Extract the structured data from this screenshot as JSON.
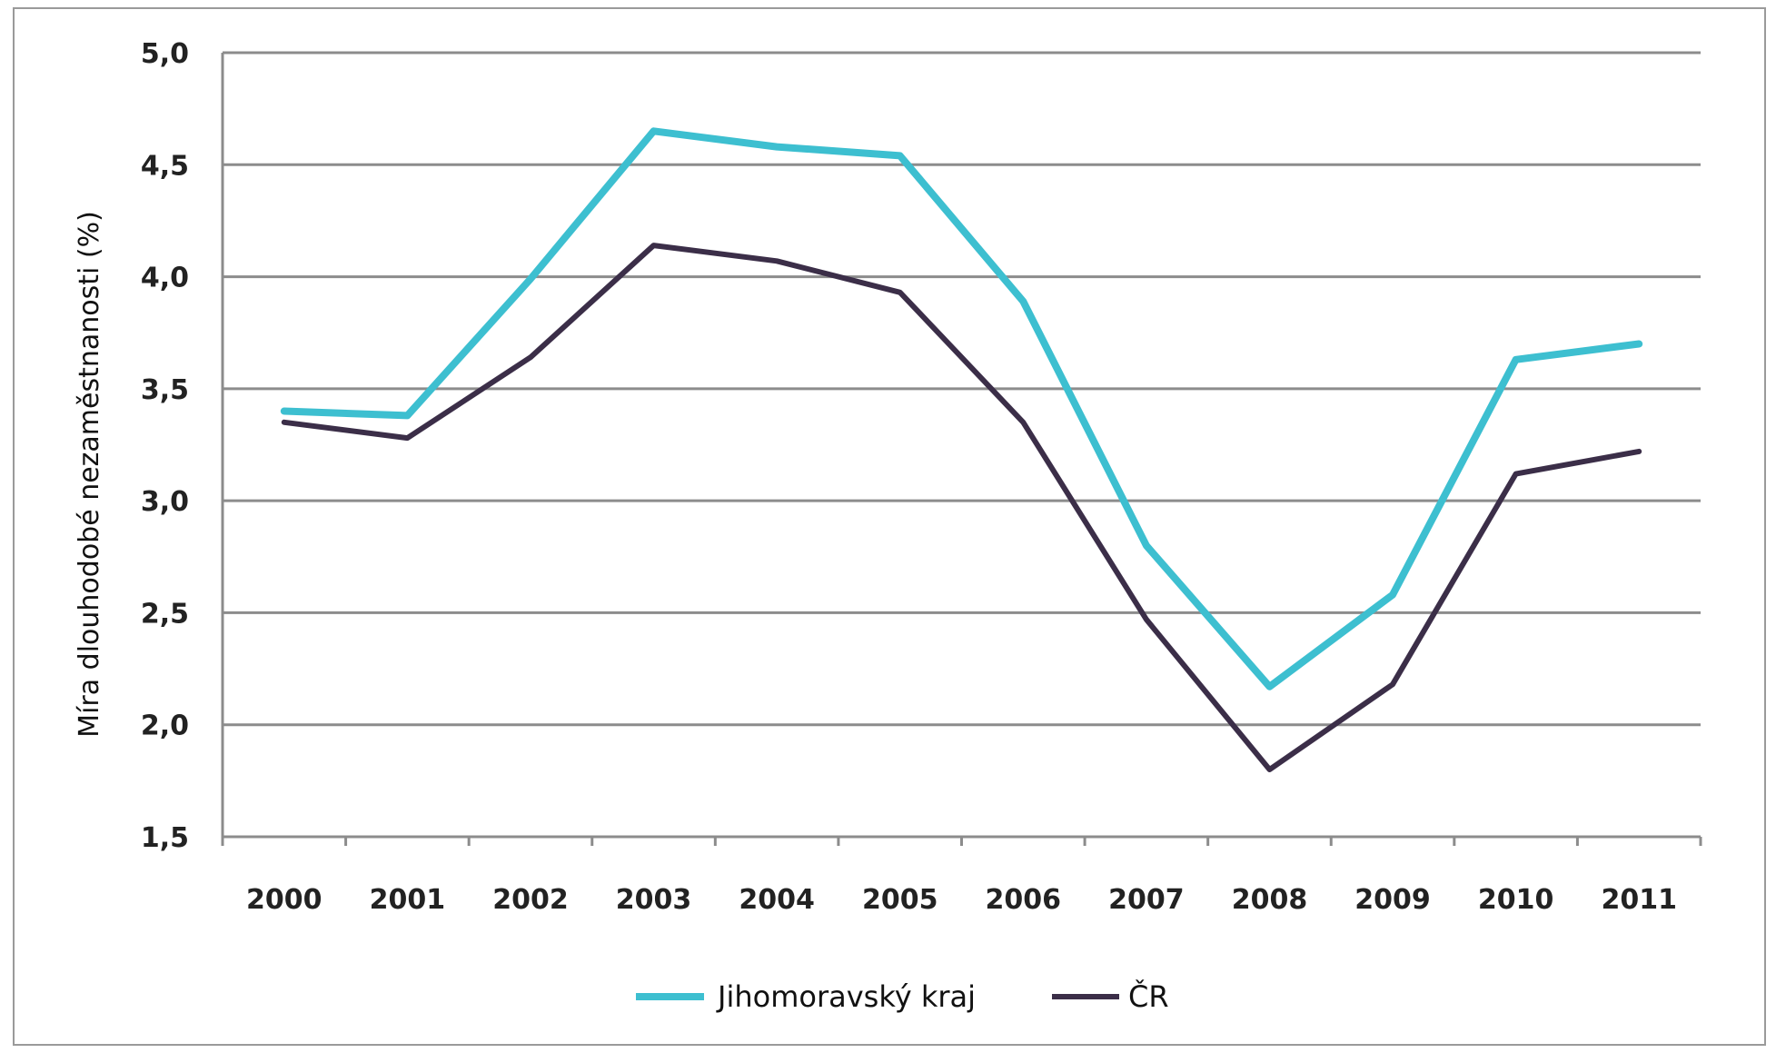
{
  "chart_data": {
    "type": "line",
    "ylabel": "Míra dlouhodobé nezaměstnanosti (%)",
    "ylim": [
      1.5,
      5.0
    ],
    "yticks": [
      "1,5",
      "2,0",
      "2,5",
      "3,0",
      "3,5",
      "4,0",
      "4,5",
      "5,0"
    ],
    "categories": [
      "2000",
      "2001",
      "2002",
      "2003",
      "2004",
      "2005",
      "2006",
      "2007",
      "2008",
      "2009",
      "2010",
      "2011"
    ],
    "grid": true,
    "legend_position": "bottom",
    "series": [
      {
        "name": "Jihomoravský kraj",
        "color": "#3dbfd0",
        "values": [
          3.4,
          3.38,
          3.99,
          4.65,
          4.58,
          4.54,
          3.89,
          2.8,
          2.17,
          2.58,
          3.63,
          3.7
        ]
      },
      {
        "name": "ČR",
        "color": "#3b2e48",
        "values": [
          3.35,
          3.28,
          3.64,
          4.14,
          4.07,
          3.93,
          3.35,
          2.47,
          1.8,
          2.18,
          3.12,
          3.22
        ]
      }
    ]
  }
}
